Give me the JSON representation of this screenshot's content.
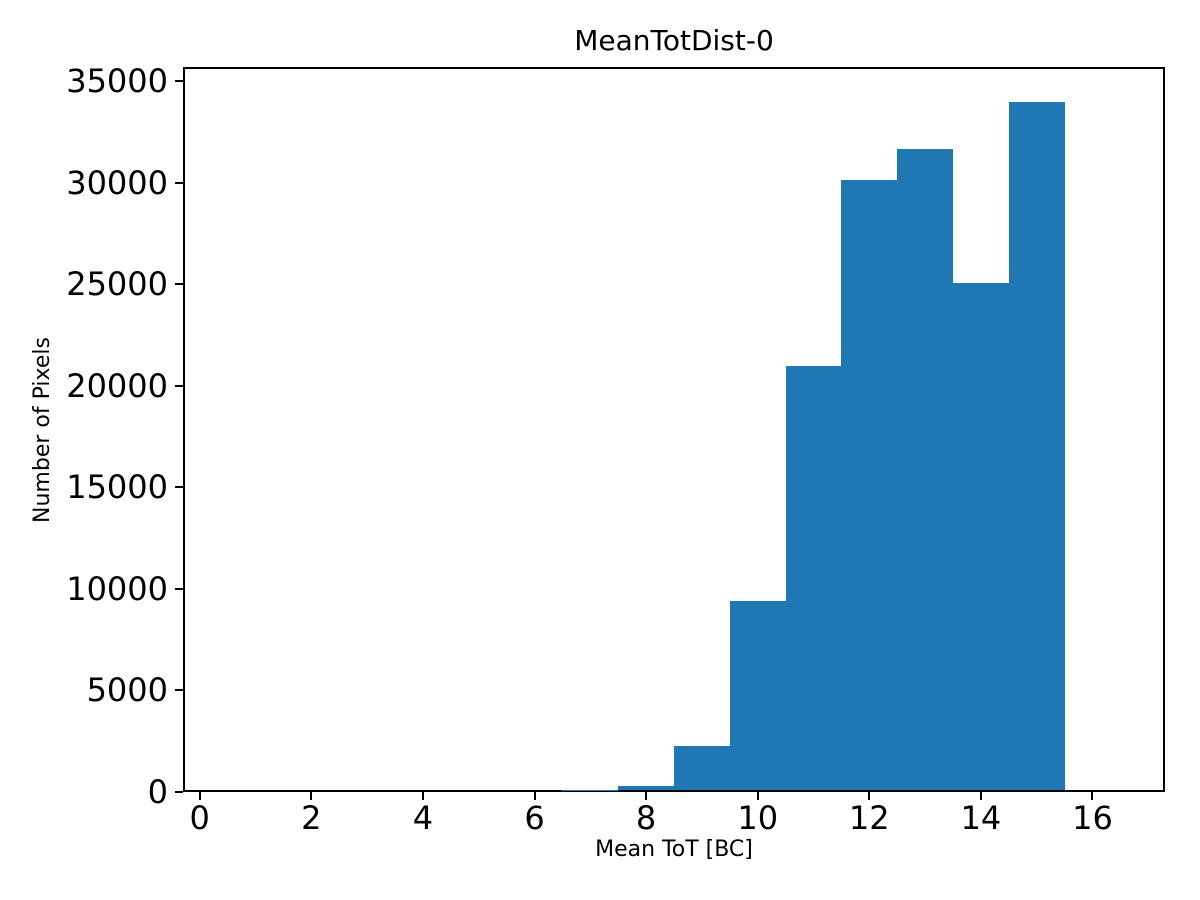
{
  "figure": {
    "title": "MeanTotDist-0",
    "xlabel": "Mean ToT [BC]",
    "ylabel": "Number of Pixels"
  },
  "chart_data": {
    "type": "bar",
    "subtype": "histogram",
    "title": "MeanTotDist-0",
    "xlabel": "Mean ToT [BC]",
    "ylabel": "Number of Pixels",
    "bar_color": "#1f77b4",
    "spine_color": "#000000",
    "text_color": "#000000",
    "background_color": "#ffffff",
    "grid": false,
    "legend": null,
    "bin_edges": [
      0.5,
      1.5,
      2.5,
      3.5,
      4.5,
      5.5,
      6.5,
      7.5,
      8.5,
      9.5,
      10.5,
      11.5,
      12.5,
      13.5,
      14.5,
      15.5,
      16.5
    ],
    "counts": [
      0,
      0,
      0,
      0,
      0,
      0,
      120,
      320,
      2250,
      9400,
      21000,
      30150,
      31650,
      25050,
      34000,
      0
    ],
    "xlim": [
      -0.3,
      17.3
    ],
    "ylim": [
      0,
      35700
    ],
    "xticks": [
      0,
      2,
      4,
      6,
      8,
      10,
      12,
      14,
      16
    ],
    "yticks": [
      0,
      5000,
      10000,
      15000,
      20000,
      25000,
      30000,
      35000
    ]
  }
}
